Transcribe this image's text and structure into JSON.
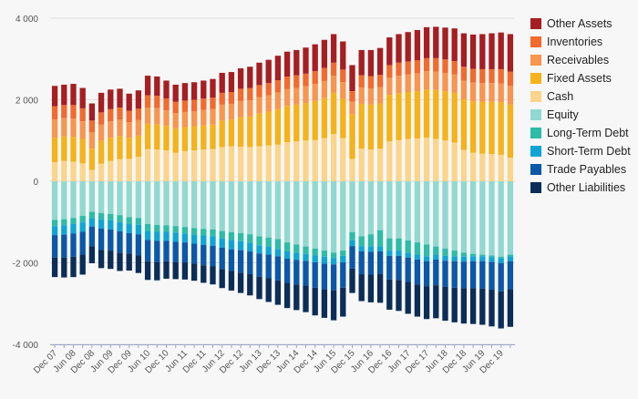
{
  "chart_data": {
    "type": "bar",
    "stacked": true,
    "grid": true,
    "legend_position": "right",
    "ylim": [
      -4000,
      4000
    ],
    "y_ticks": [
      4000,
      2000,
      0,
      -2000,
      -4000
    ],
    "y_tick_labels": [
      "4 000",
      "2 000",
      "0",
      "-2 000",
      "-4 000"
    ],
    "x_tick_labels": [
      "Dec 07",
      "Jun 08",
      "Dec 08",
      "Jun 09",
      "Dec 09",
      "Jun 10",
      "Dec 10",
      "Jun 11",
      "Dec 11",
      "Jun 12",
      "Dec 12",
      "Jun 13",
      "Dec 13",
      "Jun 14",
      "Dec 14",
      "Jun 15",
      "Dec 15",
      "Jun 16",
      "Dec 16",
      "Jun 17",
      "Dec 17",
      "Jun 18",
      "Dec 18",
      "Jun 19",
      "Dec 19"
    ],
    "categories": [
      "Dec 07",
      "Mar 08",
      "Jun 08",
      "Sep 08",
      "Dec 08",
      "Mar 09",
      "Jun 09",
      "Sep 09",
      "Dec 09",
      "Mar 10",
      "Jun 10",
      "Sep 10",
      "Dec 10",
      "Mar 11",
      "Jun 11",
      "Sep 11",
      "Dec 11",
      "Mar 12",
      "Jun 12",
      "Sep 12",
      "Dec 12",
      "Mar 13",
      "Jun 13",
      "Sep 13",
      "Dec 13",
      "Mar 14",
      "Jun 14",
      "Sep 14",
      "Dec 14",
      "Mar 15",
      "Jun 15",
      "Sep 15",
      "Dec 15",
      "Mar 16",
      "Jun 16",
      "Sep 16",
      "Dec 16",
      "Mar 17",
      "Jun 17",
      "Sep 17",
      "Dec 17",
      "Mar 18",
      "Jun 18",
      "Sep 18",
      "Dec 18",
      "Mar 19",
      "Jun 19",
      "Sep 19",
      "Dec 19",
      "Mar 20"
    ],
    "series": [
      {
        "name": "Cash",
        "color": "#fbd58c",
        "values": [
          470,
          500,
          480,
          440,
          280,
          430,
          500,
          540,
          550,
          600,
          790,
          780,
          760,
          700,
          740,
          760,
          780,
          790,
          840,
          860,
          850,
          840,
          860,
          880,
          900,
          960,
          980,
          1000,
          1010,
          1060,
          1160,
          1060,
          550,
          800,
          780,
          800,
          980,
          1010,
          1040,
          1050,
          1070,
          1040,
          1000,
          950,
          770,
          700,
          680,
          670,
          650,
          580
        ]
      },
      {
        "name": "Fixed Assets",
        "color": "#f5b21a",
        "values": [
          600,
          600,
          610,
          600,
          520,
          560,
          570,
          570,
          520,
          520,
          620,
          620,
          600,
          600,
          590,
          590,
          590,
          600,
          650,
          650,
          720,
          750,
          800,
          830,
          870,
          890,
          900,
          920,
          960,
          980,
          1010,
          960,
          1100,
          1100,
          1100,
          1110,
          1140,
          1150,
          1150,
          1160,
          1180,
          1200,
          1210,
          1220,
          1240,
          1260,
          1270,
          1280,
          1290,
          1300
        ]
      },
      {
        "name": "Receivables",
        "color": "#f8954f",
        "values": [
          450,
          450,
          450,
          430,
          400,
          400,
          400,
          400,
          380,
          380,
          400,
          400,
          380,
          370,
          370,
          370,
          380,
          380,
          390,
          390,
          400,
          400,
          400,
          400,
          410,
          410,
          410,
          410,
          420,
          420,
          420,
          410,
          300,
          400,
          400,
          400,
          420,
          430,
          430,
          440,
          450,
          450,
          450,
          450,
          460,
          460,
          460,
          460,
          460,
          460
        ]
      },
      {
        "name": "Inventories",
        "color": "#f26a2d",
        "values": [
          320,
          320,
          330,
          320,
          290,
          300,
          300,
          300,
          280,
          280,
          300,
          300,
          290,
          280,
          280,
          280,
          280,
          280,
          290,
          290,
          300,
          300,
          300,
          300,
          300,
          310,
          310,
          310,
          310,
          320,
          320,
          310,
          260,
          300,
          300,
          300,
          310,
          320,
          320,
          320,
          320,
          330,
          330,
          330,
          340,
          340,
          340,
          340,
          350,
          350
        ]
      },
      {
        "name": "Other Assets",
        "color": "#a51e22",
        "values": [
          500,
          500,
          520,
          500,
          420,
          480,
          480,
          460,
          420,
          450,
          480,
          470,
          440,
          420,
          430,
          430,
          440,
          460,
          490,
          490,
          500,
          520,
          550,
          570,
          600,
          610,
          620,
          640,
          660,
          690,
          700,
          690,
          640,
          620,
          640,
          660,
          680,
          700,
          720,
          740,
          760,
          770,
          780,
          800,
          820,
          840,
          860,
          880,
          900,
          920
        ]
      },
      {
        "name": "Equity",
        "color": "#91d9d0",
        "values": [
          -950,
          -930,
          -900,
          -850,
          -750,
          -780,
          -800,
          -830,
          -880,
          -900,
          -1050,
          -1070,
          -1080,
          -1100,
          -1120,
          -1150,
          -1170,
          -1180,
          -1220,
          -1250,
          -1270,
          -1300,
          -1350,
          -1380,
          -1420,
          -1500,
          -1550,
          -1600,
          -1650,
          -1700,
          -1750,
          -1700,
          -1250,
          -1350,
          -1300,
          -1200,
          -1400,
          -1400,
          -1450,
          -1500,
          -1550,
          -1600,
          -1650,
          -1700,
          -1750,
          -1780,
          -1800,
          -1820,
          -1850,
          -1800
        ]
      },
      {
        "name": "Long-Term Debt",
        "color": "#2dbca8",
        "values": [
          -150,
          -150,
          -150,
          -160,
          -150,
          -160,
          -160,
          -170,
          -170,
          -170,
          -170,
          -170,
          -160,
          -160,
          -160,
          -160,
          -160,
          -170,
          -180,
          -190,
          -200,
          -210,
          -220,
          -230,
          -240,
          -220,
          -200,
          -180,
          -170,
          -150,
          -130,
          -130,
          -200,
          -240,
          -300,
          -400,
          -300,
          -300,
          -300,
          -300,
          -290,
          -200,
          -180,
          -140,
          -100,
          -60,
          -40,
          -40,
          -40,
          -40
        ]
      },
      {
        "name": "Short-Term Debt",
        "color": "#0ea5d5",
        "values": [
          -220,
          -230,
          -230,
          -230,
          -210,
          -220,
          -220,
          -230,
          -220,
          -230,
          -220,
          -220,
          -220,
          -220,
          -220,
          -220,
          -230,
          -230,
          -230,
          -230,
          -220,
          -210,
          -200,
          -190,
          -180,
          -180,
          -180,
          -170,
          -170,
          -170,
          -160,
          -160,
          -140,
          -130,
          -130,
          -120,
          -130,
          -130,
          -120,
          -120,
          -120,
          -120,
          -120,
          -120,
          -120,
          -120,
          -120,
          -120,
          -120,
          -120
        ]
      },
      {
        "name": "Trade Payables",
        "color": "#0b57a8",
        "values": [
          -550,
          -560,
          -570,
          -560,
          -480,
          -520,
          -520,
          -520,
          -500,
          -520,
          -520,
          -520,
          -500,
          -500,
          -490,
          -490,
          -500,
          -500,
          -520,
          -530,
          -550,
          -560,
          -570,
          -580,
          -590,
          -590,
          -600,
          -610,
          -620,
          -630,
          -640,
          -620,
          -550,
          -560,
          -560,
          -560,
          -580,
          -590,
          -600,
          -610,
          -620,
          -630,
          -640,
          -650,
          -650,
          -660,
          -670,
          -680,
          -690,
          -690
        ]
      },
      {
        "name": "Other Liabilities",
        "color": "#0b2d57",
        "values": [
          -480,
          -490,
          -500,
          -490,
          -420,
          -450,
          -450,
          -450,
          -420,
          -430,
          -460,
          -450,
          -430,
          -420,
          -420,
          -420,
          -430,
          -450,
          -470,
          -480,
          -500,
          -520,
          -550,
          -580,
          -600,
          -620,
          -630,
          -650,
          -680,
          -700,
          -730,
          -710,
          -600,
          -660,
          -680,
          -700,
          -740,
          -760,
          -780,
          -790,
          -800,
          -810,
          -830,
          -850,
          -870,
          -880,
          -890,
          -900,
          -910,
          -920
        ]
      }
    ],
    "legend_order": [
      "Other Assets",
      "Inventories",
      "Receivables",
      "Fixed Assets",
      "Cash",
      "Equity",
      "Long-Term Debt",
      "Short-Term Debt",
      "Trade Payables",
      "Other Liabilities"
    ]
  }
}
